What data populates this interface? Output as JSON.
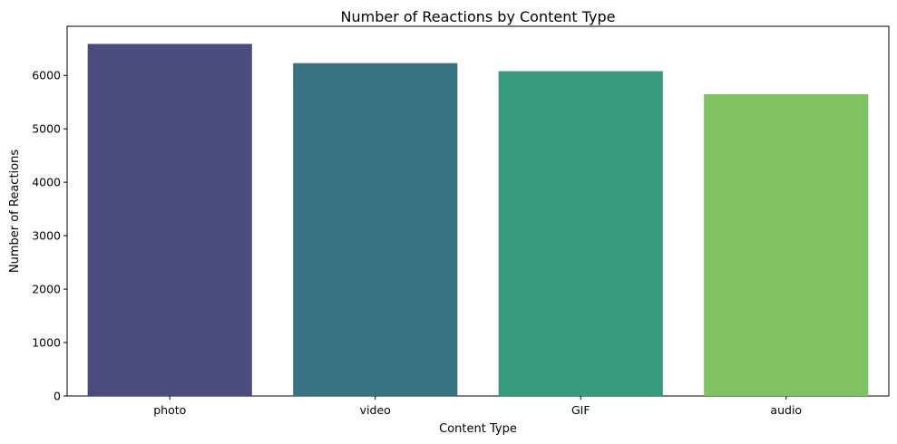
{
  "chart_data": {
    "type": "bar",
    "title": "Number of Reactions by Content Type",
    "xlabel": "Content Type",
    "ylabel": "Number of Reactions",
    "categories": [
      "photo",
      "video",
      "GIF",
      "audio"
    ],
    "values": [
      6590,
      6230,
      6080,
      5650
    ],
    "colors": [
      "#4a4c7e",
      "#36727f",
      "#369a7c",
      "#80c262"
    ],
    "ylim": [
      0,
      6920
    ],
    "yticks": [
      0,
      1000,
      2000,
      3000,
      4000,
      5000,
      6000
    ],
    "grid": false,
    "legend": "none"
  }
}
